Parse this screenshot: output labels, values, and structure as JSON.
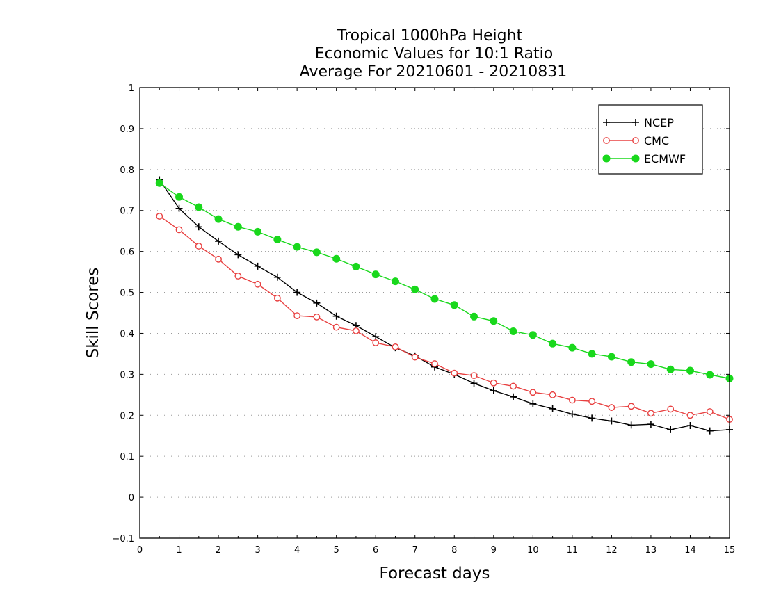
{
  "chart_data": {
    "type": "line",
    "title_lines": [
      "Tropical 1000hPa Height",
      "Economic Values for 10:1 Ratio",
      "Average For 20210601 - 20210831"
    ],
    "xlabel": "Forecast days",
    "ylabel": "Skill Scores",
    "xlim": [
      0,
      15
    ],
    "ylim": [
      -0.1,
      1
    ],
    "x_ticks": [
      0,
      1,
      2,
      3,
      4,
      5,
      6,
      7,
      8,
      9,
      10,
      11,
      12,
      13,
      14,
      15
    ],
    "y_ticks": [
      -0.1,
      0,
      0.1,
      0.2,
      0.3,
      0.4,
      0.5,
      0.6,
      0.7,
      0.8,
      0.9,
      1
    ],
    "y_tick_labels": [
      "−0.1",
      "0",
      "0.1",
      "0.2",
      "0.3",
      "0.4",
      "0.5",
      "0.6",
      "0.7",
      "0.8",
      "0.9",
      "1"
    ],
    "grid": "horizontal dotted",
    "legend_position": "top-right",
    "x": [
      0.5,
      1,
      1.5,
      2,
      2.5,
      3,
      3.5,
      4,
      4.5,
      5,
      5.5,
      6,
      6.5,
      7,
      7.5,
      8,
      8.5,
      9,
      9.5,
      10,
      10.5,
      11,
      11.5,
      12,
      12.5,
      13,
      13.5,
      14,
      14.5,
      15
    ],
    "series": [
      {
        "name": "NCEP",
        "color": "#000000",
        "marker": "plus",
        "values": [
          0.775,
          0.705,
          0.66,
          0.625,
          0.592,
          0.564,
          0.537,
          0.5,
          0.474,
          0.442,
          0.419,
          0.392,
          0.365,
          0.345,
          0.318,
          0.3,
          0.278,
          0.26,
          0.245,
          0.228,
          0.216,
          0.203,
          0.193,
          0.186,
          0.176,
          0.178,
          0.165,
          0.175,
          0.162,
          0.165
        ]
      },
      {
        "name": "CMC",
        "color": "#e84040",
        "marker": "open-circle",
        "values": [
          0.686,
          0.653,
          0.613,
          0.581,
          0.54,
          0.52,
          0.486,
          0.443,
          0.44,
          0.415,
          0.406,
          0.377,
          0.367,
          0.342,
          0.326,
          0.303,
          0.297,
          0.279,
          0.271,
          0.256,
          0.25,
          0.237,
          0.234,
          0.219,
          0.222,
          0.205,
          0.215,
          0.2,
          0.209,
          0.19
        ]
      },
      {
        "name": "ECMWF",
        "color": "#19d81c",
        "marker": "filled-circle",
        "values": [
          0.767,
          0.733,
          0.708,
          0.679,
          0.66,
          0.648,
          0.629,
          0.611,
          0.598,
          0.582,
          0.563,
          0.544,
          0.527,
          0.507,
          0.484,
          0.469,
          0.441,
          0.43,
          0.405,
          0.396,
          0.375,
          0.365,
          0.35,
          0.343,
          0.33,
          0.325,
          0.312,
          0.309,
          0.299,
          0.29
        ]
      }
    ]
  }
}
